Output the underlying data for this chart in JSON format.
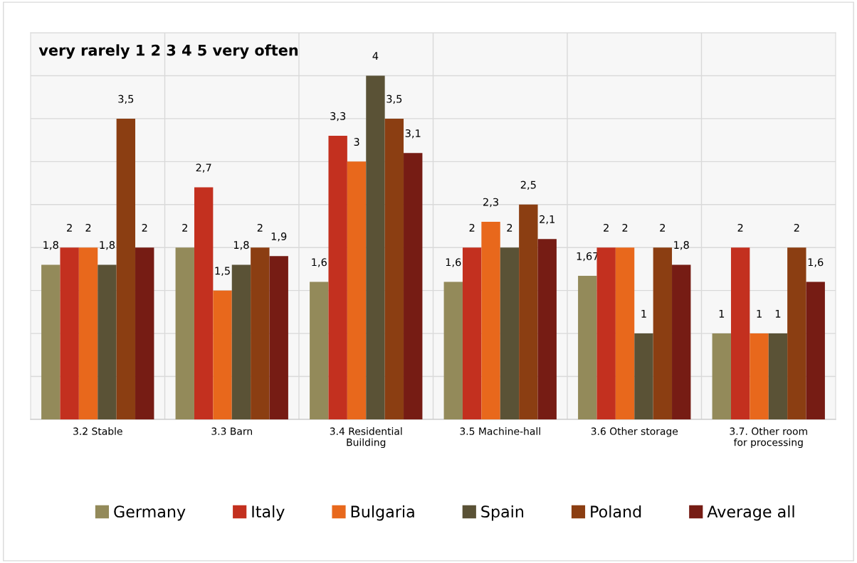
{
  "chart_data": {
    "type": "bar",
    "title": "very rarely 1 2 3 4 5 very often",
    "categories": [
      "3.2 Stable",
      "3.3 Barn",
      "3.4 Residential Building",
      "3.5 Machine-hall",
      "3.6 Other storage",
      "3.7. Other room for processing"
    ],
    "series": [
      {
        "name": "Germany",
        "color": "#938a5a",
        "values": [
          1.8,
          2,
          1.6,
          1.6,
          1.67,
          1
        ],
        "value_labels": [
          "1,8",
          "2",
          "1,6",
          "1,6",
          "1,67",
          "1"
        ]
      },
      {
        "name": "Italy",
        "color": "#c3301f",
        "values": [
          2,
          2.7,
          3.3,
          2,
          2,
          2
        ],
        "value_labels": [
          "2",
          "2,7",
          "3,3",
          "2",
          "2",
          "2"
        ]
      },
      {
        "name": "Bulgaria",
        "color": "#e8681c",
        "values": [
          2,
          1.5,
          3,
          2.3,
          2,
          1
        ],
        "value_labels": [
          "2",
          "1,5",
          "3",
          "2,3",
          "2",
          "1"
        ]
      },
      {
        "name": "Spain",
        "color": "#5a5236",
        "values": [
          1.8,
          1.8,
          4,
          2,
          1,
          1
        ],
        "value_labels": [
          "1,8",
          "1,8",
          "4",
          "2",
          "1",
          "1"
        ]
      },
      {
        "name": "Poland",
        "color": "#8b3e12",
        "values": [
          3.5,
          2,
          3.5,
          2.5,
          2,
          2
        ],
        "value_labels": [
          "3,5",
          "2",
          "3,5",
          "2,5",
          "2",
          "2"
        ]
      },
      {
        "name": "Average all",
        "color": "#761c14",
        "values": [
          2,
          1.9,
          3.1,
          2.1,
          1.8,
          1.6
        ],
        "value_labels": [
          "2",
          "1,9",
          "3,1",
          "2,1",
          "1,8",
          "1,6"
        ]
      }
    ],
    "ylim": [
      0,
      4.5
    ],
    "yticks": [
      0,
      0.5,
      1,
      1.5,
      2,
      2.5,
      3,
      3.5,
      4,
      4.5
    ],
    "tick_labels": "x",
    "grid": true,
    "legend": "bottom"
  }
}
